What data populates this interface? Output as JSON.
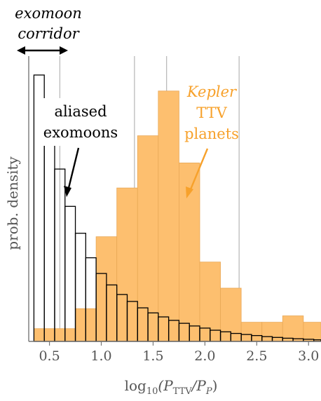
{
  "chart_data": {
    "type": "bar",
    "xlabel": "log₁₀(P_TTV/P_P)",
    "xlabel_parts": {
      "pre": "log",
      "sub1": "10",
      "mid": "(P",
      "sub2": "TTV",
      "slash": "/P",
      "sub3": "P",
      "post": ")"
    },
    "ylabel": "prob. density",
    "xlim": [
      0.3,
      3.12
    ],
    "ylim": [
      0,
      100
    ],
    "xticks": [
      0.5,
      1.0,
      1.5,
      2.0,
      2.5,
      3.0
    ],
    "xtick_labels": [
      "0.5",
      "1.0",
      "1.5",
      "2.0",
      "2.5",
      "3.0"
    ],
    "vertical_lines": [
      0.6,
      1.32,
      1.63,
      2.33
    ],
    "series": [
      {
        "name": "Kepler TTV planets",
        "color": "#FDBF6F",
        "edge": "#E8A857",
        "bin_edges": [
          0.35,
          0.55,
          0.75,
          0.95,
          1.15,
          1.35,
          1.55,
          1.75,
          1.95,
          2.15,
          2.35,
          2.55,
          2.75,
          2.95,
          3.15
        ],
        "values": [
          4.8,
          4.8,
          12.3,
          39.3,
          57.6,
          77.2,
          94.0,
          67.0,
          29.8,
          20.0,
          7.2,
          7.2,
          9.6,
          7.2
        ]
      },
      {
        "name": "aliased exomoons",
        "color": "#000000",
        "bin_edges": [
          0.35,
          0.45,
          0.55,
          0.65,
          0.75,
          0.85,
          0.95,
          1.05,
          1.15,
          1.25,
          1.35,
          1.45,
          1.55,
          1.65,
          1.75,
          1.85,
          1.95,
          2.05,
          2.15,
          2.25,
          2.35,
          2.45,
          2.55,
          2.65,
          2.75,
          2.85,
          2.95,
          3.05,
          3.15
        ],
        "values": [
          100.0,
          81.7,
          64.7,
          50.7,
          40.6,
          31.4,
          25.5,
          21.2,
          17.6,
          15.0,
          12.6,
          10.7,
          9.2,
          7.9,
          6.8,
          5.8,
          5.0,
          4.2,
          3.6,
          3.0,
          2.6,
          2.2,
          1.8,
          1.5,
          1.2,
          1.0,
          0.8,
          0.6
        ]
      }
    ],
    "annotations": {
      "corridor_line1": "exomoon",
      "corridor_line2": "corridor",
      "aliased_line1": "aliased",
      "aliased_line2": "exomoons",
      "kepler_line1": "Kepler",
      "kepler_line2": "TTV",
      "kepler_line3": "planets"
    },
    "colors": {
      "kepler": "#F7A12B",
      "arrow_black": "#000000",
      "axis": "#777777",
      "vline": "#BBBBBB"
    }
  }
}
